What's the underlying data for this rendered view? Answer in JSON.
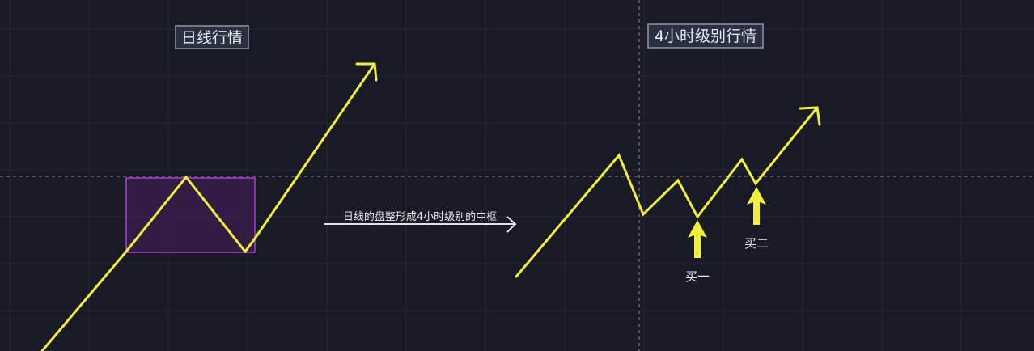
{
  "panels": {
    "left_title": "日线行情",
    "right_title": "4小时级别行情"
  },
  "annotations": {
    "transition": "日线的盘整形成4小时级别的中枢",
    "buy_one": "买一",
    "buy_two": "买二"
  },
  "colors": {
    "background": "#181a25",
    "grid": "#262938",
    "crosshair": "#8a8d99",
    "price_line": "#f2ee3c",
    "consolidation_box_fill": "#3a1d4e",
    "consolidation_box_stroke": "#b33bd6",
    "text": "#e6e8ef",
    "title_box_stroke": "#8e96a8",
    "title_box_fill": "#2a3040"
  },
  "icons": {
    "trend_arrowhead": "chevron-arrowhead-icon",
    "buy_marker": "up-arrow-icon",
    "transition_arrow": "right-arrow-icon"
  }
}
